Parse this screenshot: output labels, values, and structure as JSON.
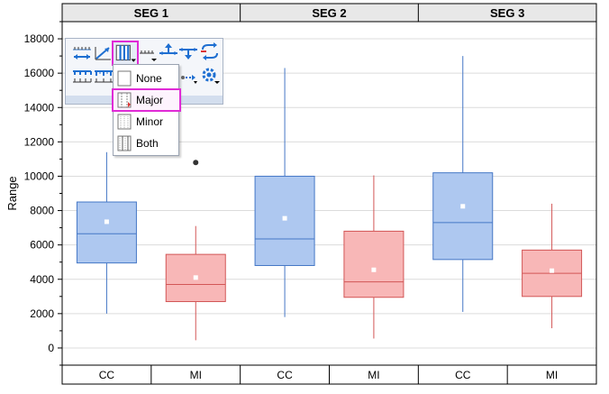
{
  "chart_data": {
    "type": "box",
    "panels": [
      "SEG 1",
      "SEG 2",
      "SEG 3"
    ],
    "categories": [
      "CC",
      "MI"
    ],
    "ylabel": "Range",
    "ylim": [
      -1000,
      19000
    ],
    "yticks": [
      0,
      2000,
      4000,
      6000,
      8000,
      10000,
      12000,
      14000,
      16000,
      18000
    ],
    "grid": true,
    "boxes": [
      {
        "panel": "SEG 1",
        "category": "CC",
        "whisker_low": 2000,
        "q1": 4950,
        "median": 6650,
        "q3": 8500,
        "whisker_high": 11400,
        "mean": 7350,
        "outliers": []
      },
      {
        "panel": "SEG 1",
        "category": "MI",
        "whisker_low": 450,
        "q1": 2700,
        "median": 3700,
        "q3": 5450,
        "whisker_high": 7100,
        "mean": 4100,
        "outliers": [
          10800
        ]
      },
      {
        "panel": "SEG 2",
        "category": "CC",
        "whisker_low": 1800,
        "q1": 4800,
        "median": 6350,
        "q3": 10000,
        "whisker_high": 16300,
        "mean": 7550,
        "outliers": []
      },
      {
        "panel": "SEG 2",
        "category": "MI",
        "whisker_low": 550,
        "q1": 2950,
        "median": 3850,
        "q3": 6800,
        "whisker_high": 10050,
        "mean": 4550,
        "outliers": []
      },
      {
        "panel": "SEG 3",
        "category": "CC",
        "whisker_low": 2100,
        "q1": 5150,
        "median": 7300,
        "q3": 10200,
        "whisker_high": 17000,
        "mean": 8250,
        "outliers": []
      },
      {
        "panel": "SEG 3",
        "category": "MI",
        "whisker_low": 1150,
        "q1": 3000,
        "median": 4350,
        "q3": 5700,
        "whisker_high": 8400,
        "mean": 4500,
        "outliers": []
      }
    ],
    "colors": {
      "CC": {
        "fill": "#aec8f0",
        "stroke": "#4577c6"
      },
      "MI": {
        "fill": "#f8b7b7",
        "stroke": "#d25656"
      }
    }
  },
  "toolbar": {
    "menu": {
      "items": [
        {
          "label": "None",
          "icon": "grid-none-icon"
        },
        {
          "label": "Major",
          "icon": "grid-major-icon"
        },
        {
          "label": "Minor",
          "icon": "grid-minor-icon"
        },
        {
          "label": "Both",
          "icon": "grid-both-icon"
        }
      ],
      "selected": "Major"
    },
    "buttons": [
      "axis-scale-icon",
      "axis-slope-icon",
      "grid-lines-icon",
      "axis-line-icon",
      "tick-up-icon",
      "tick-down-icon",
      "axis-break-icon",
      "axis-swap-icon",
      "major-ticks-icon",
      "minor-ticks-icon",
      "axis-settings-icon"
    ],
    "highlight_color": "#e02bd6"
  }
}
